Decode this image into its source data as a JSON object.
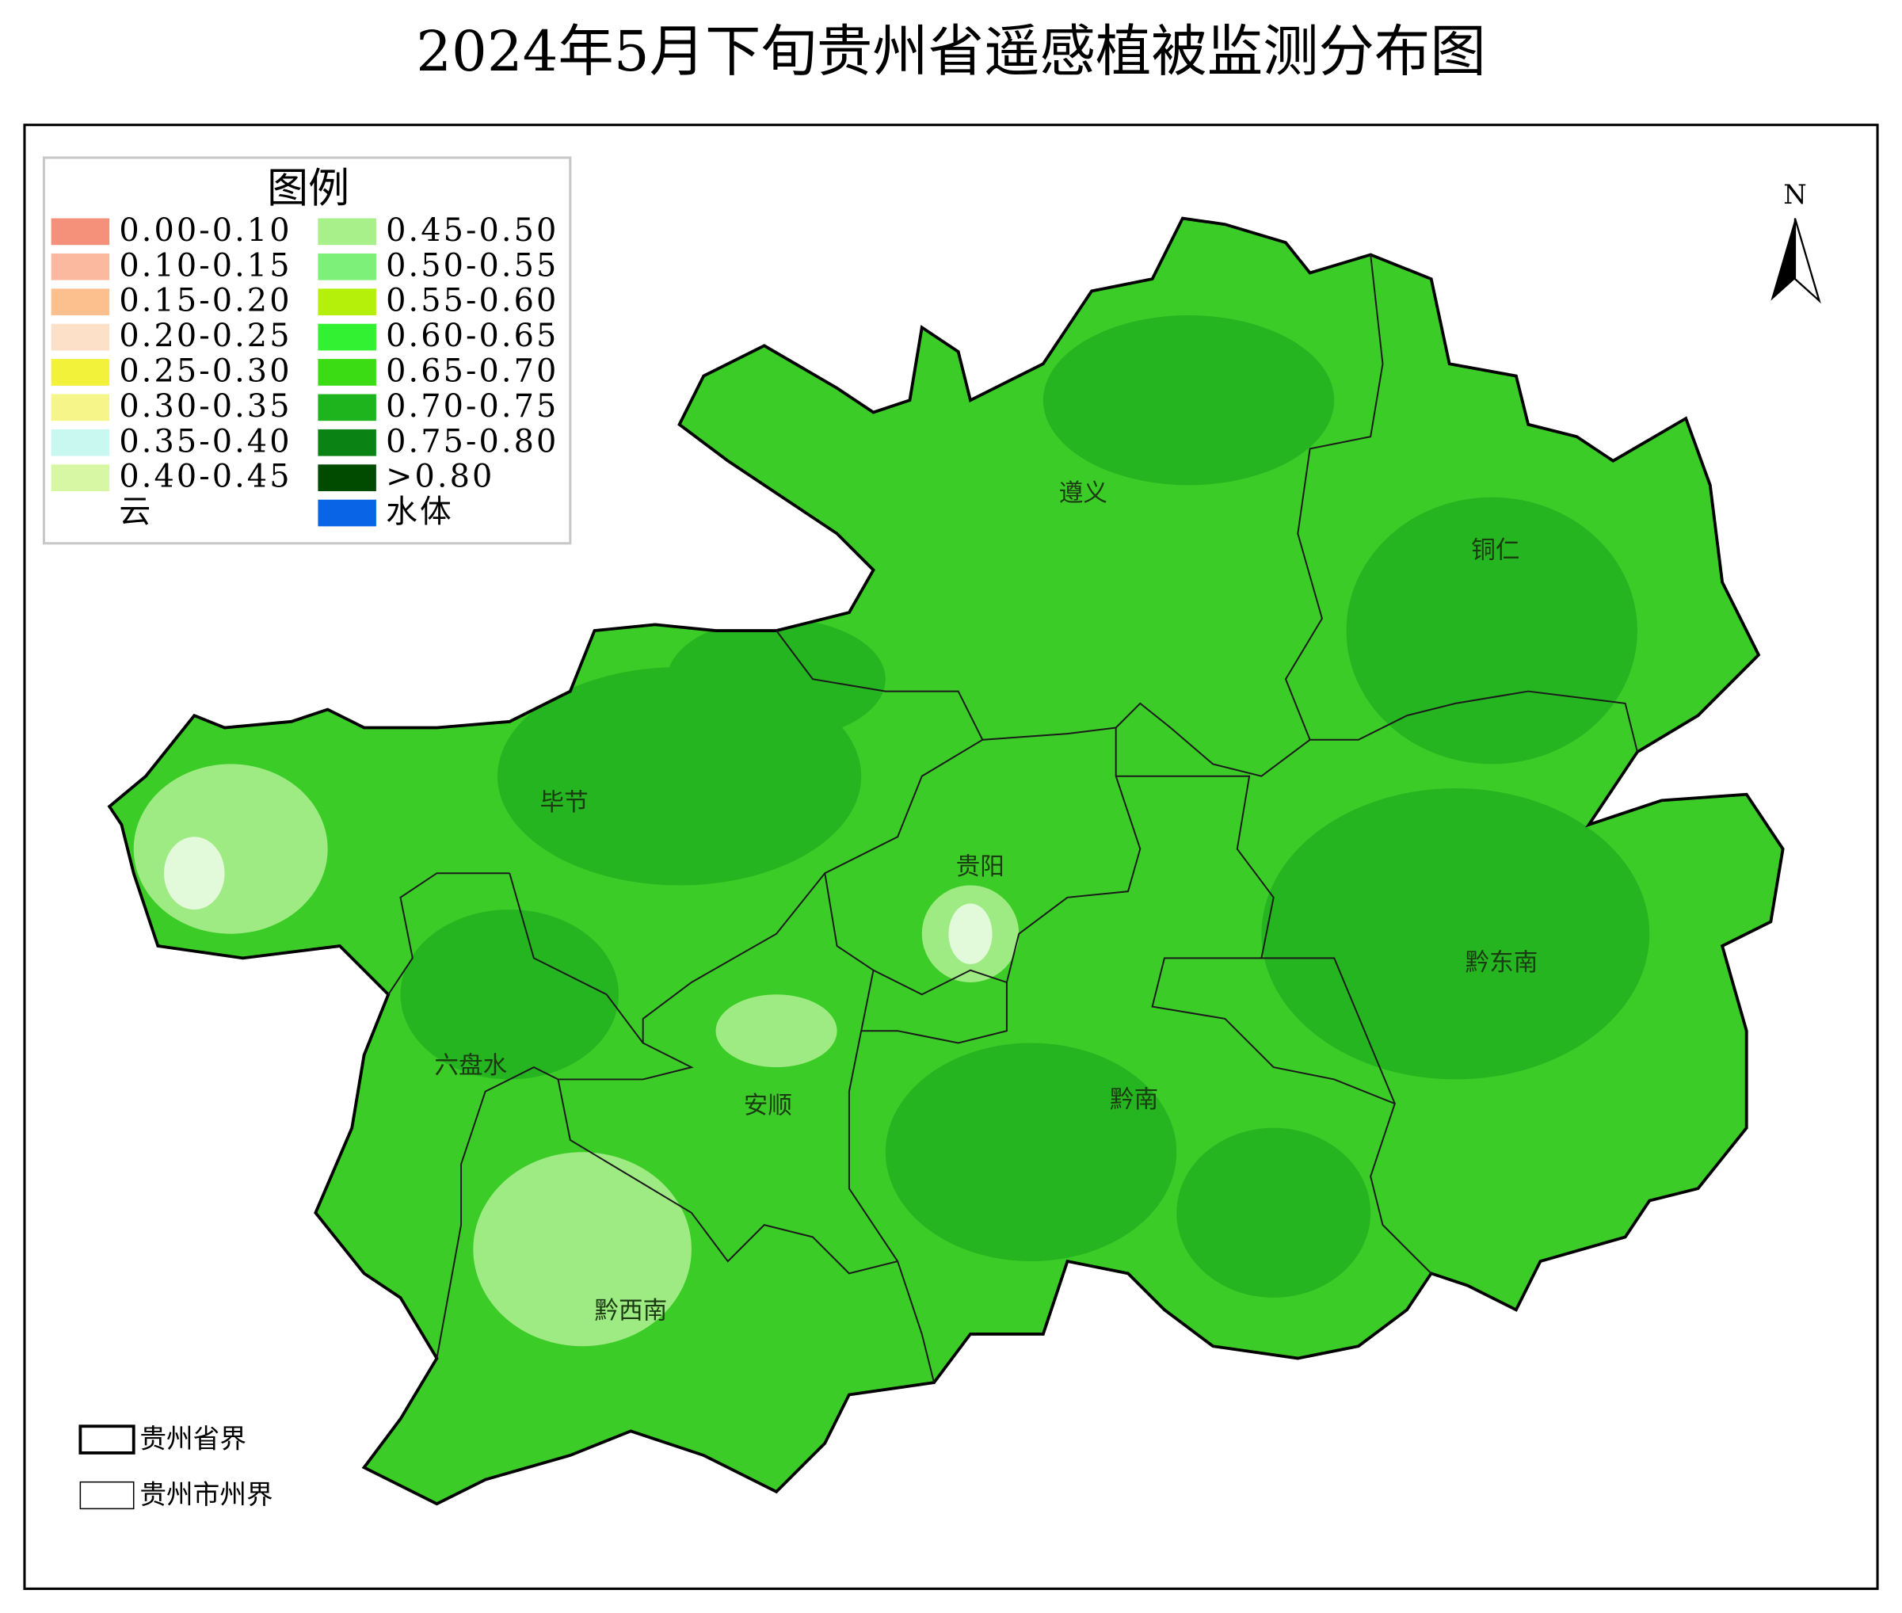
{
  "title": "2024年5月下旬贵州省遥感植被监测分布图",
  "legend": {
    "title": "图例",
    "items": [
      {
        "label": "0.00-0.10",
        "color": "#f5907a"
      },
      {
        "label": "0.10-0.15",
        "color": "#fbb99f"
      },
      {
        "label": "0.15-0.20",
        "color": "#fbc08e"
      },
      {
        "label": "0.20-0.25",
        "color": "#fde0c8"
      },
      {
        "label": "0.25-0.30",
        "color": "#f2f23a"
      },
      {
        "label": "0.30-0.35",
        "color": "#f5f58a"
      },
      {
        "label": "0.35-0.40",
        "color": "#c8f8f0"
      },
      {
        "label": "0.40-0.45",
        "color": "#d8f7a4"
      },
      {
        "label": "云",
        "color": "#ffffff"
      },
      {
        "label": "0.45-0.50",
        "color": "#a8f08a"
      },
      {
        "label": "0.50-0.55",
        "color": "#7df07a"
      },
      {
        "label": "0.55-0.60",
        "color": "#b4f00a"
      },
      {
        "label": "0.60-0.65",
        "color": "#32f032"
      },
      {
        "label": "0.65-0.70",
        "color": "#3cdc14"
      },
      {
        "label": "0.70-0.75",
        "color": "#1eb41e"
      },
      {
        "label": "0.75-0.80",
        "color": "#0a8214"
      },
      {
        "label": ">0.80",
        "color": "#004b00"
      },
      {
        "label": "水体",
        "color": "#0a64e6"
      }
    ]
  },
  "boundary_legend": [
    "贵州省界",
    "贵州市州界"
  ],
  "regions": [
    "遵义",
    "铜仁",
    "毕节",
    "贵阳",
    "黔东南",
    "六盘水",
    "安顺",
    "黔南",
    "黔西南"
  ],
  "north": "N"
}
